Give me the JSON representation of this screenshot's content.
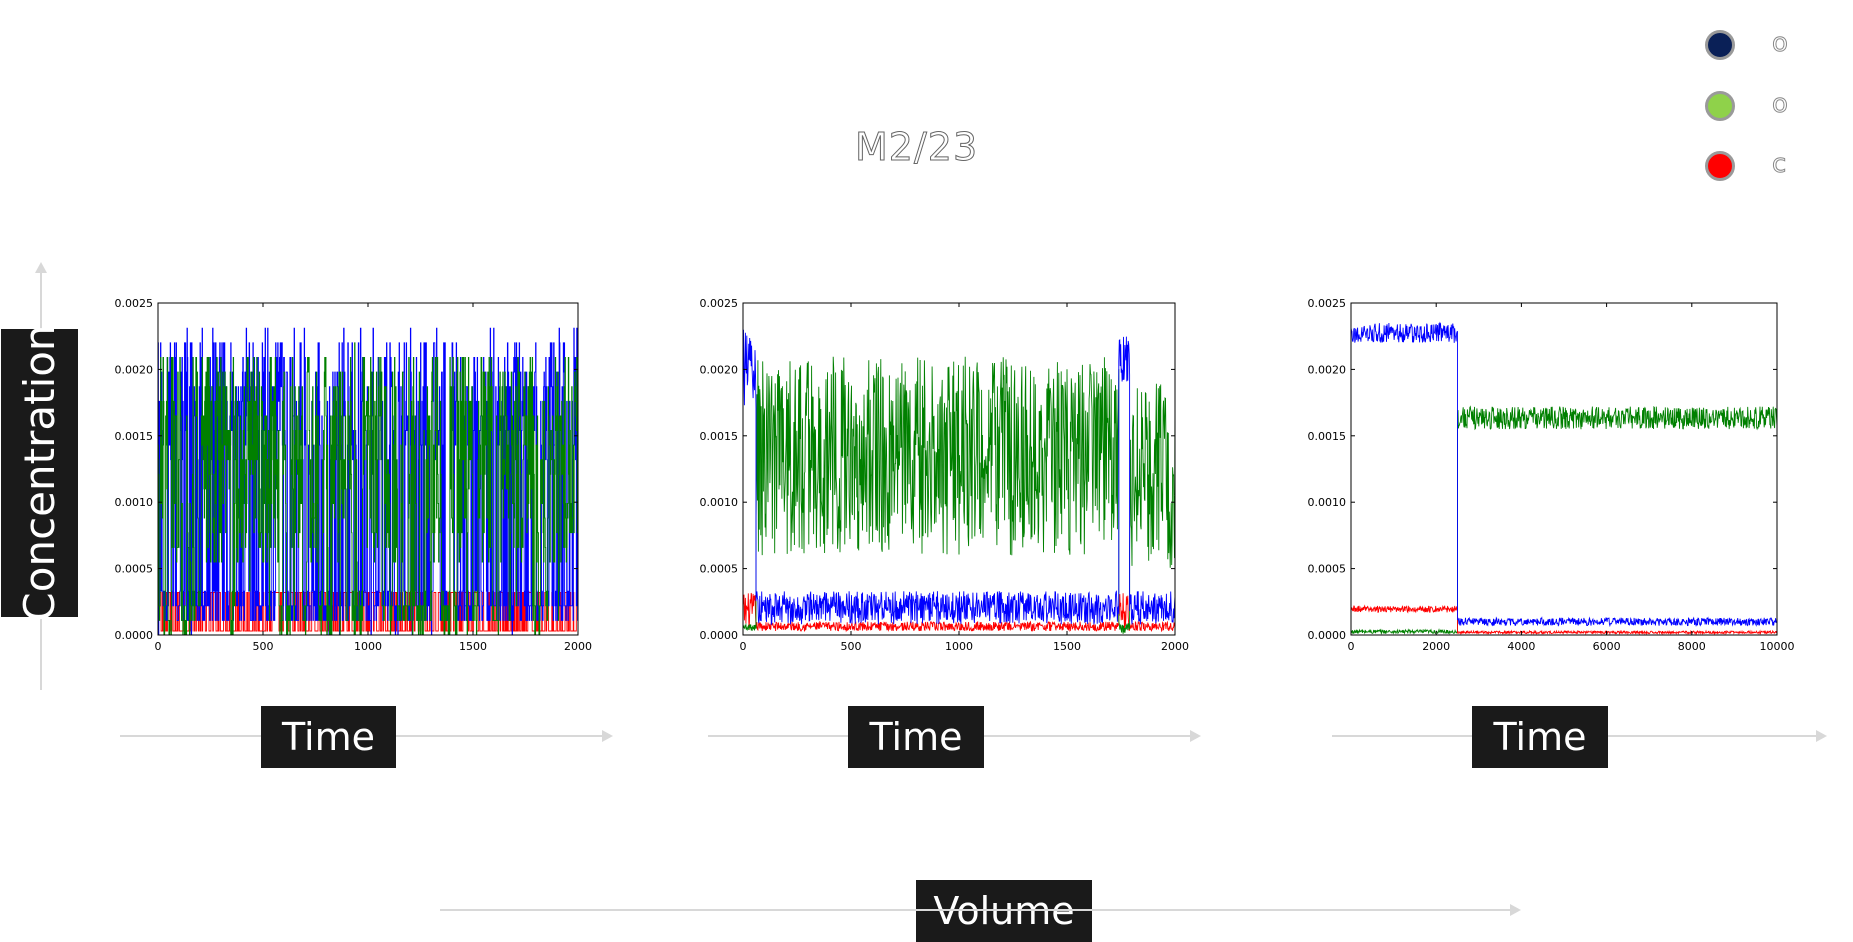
{
  "title": "M2/23",
  "legend": [
    {
      "label": "o",
      "color": "#0a2057"
    },
    {
      "label": "o",
      "color": "#8fd24a"
    },
    {
      "label": "c",
      "color": "#ff0000"
    }
  ],
  "labels": {
    "y_axis": "Concentration",
    "x_axis": "Time",
    "bottom_axis": "Volume"
  },
  "colors": {
    "blue": "#0000ff",
    "green": "#008000",
    "red": "#ff0000",
    "label_bg": "#1a1a1a"
  },
  "chart_data": [
    {
      "type": "line",
      "xlim": [
        0,
        2000
      ],
      "ylim": [
        0,
        0.0025
      ],
      "x_ticks": [
        "0",
        "500",
        "1000",
        "1500",
        "2000"
      ],
      "y_ticks": [
        "0.0000",
        "0.0005",
        "0.0010",
        "0.0015",
        "0.0020",
        "0.0025"
      ],
      "series": [
        {
          "color": "#ff0000",
          "pattern": "square_switch",
          "n": 2000,
          "lo": 3e-05,
          "hi": 0.00032,
          "hold": 3
        },
        {
          "color": "#0000ff",
          "pattern": "square_switch",
          "n": 2000,
          "lo": 5e-05,
          "hi": 0.0023,
          "hold": 2,
          "low_range": [
            5e-05,
            0.00032
          ],
          "high_range": [
            0.0013,
            0.0023
          ],
          "switch_prob": 0.35
        },
        {
          "color": "#008000",
          "pattern": "square_switch",
          "n": 2000,
          "lo": 0.0,
          "hi": 0.00215,
          "hold": 2,
          "low_range": [
            0.0,
            0.0003
          ],
          "high_range": [
            0.0005,
            0.00215
          ],
          "switch_prob": 0.25,
          "prefer_high": 0.75
        }
      ]
    },
    {
      "type": "line",
      "xlim": [
        0,
        2000
      ],
      "ylim": [
        0,
        0.0025
      ],
      "x_ticks": [
        "0",
        "500",
        "1000",
        "1500",
        "2000"
      ],
      "y_ticks": [
        "0.0000",
        "0.0005",
        "0.0010",
        "0.0015",
        "0.0020",
        "0.0025"
      ],
      "series": [
        {
          "color": "#ff0000",
          "segments": [
            [
              0,
              60,
              3e-05,
              0.00032
            ],
            [
              60,
              1740,
              3e-05,
              0.0001
            ],
            [
              1740,
              1790,
              3e-05,
              0.00032
            ],
            [
              1790,
              2000,
              3e-05,
              0.0001
            ]
          ]
        },
        {
          "color": "#008000",
          "segments": [
            [
              0,
              60,
              3e-05,
              8e-05
            ],
            [
              60,
              1740,
              0.0006,
              0.0021
            ],
            [
              1740,
              1790,
              0.0,
              0.0001
            ],
            [
              1790,
              2000,
              0.0005,
              0.0019
            ]
          ]
        },
        {
          "color": "#0000ff",
          "segments": [
            [
              0,
              60,
              0.0017,
              0.0023
            ],
            [
              60,
              1740,
              8e-05,
              0.00033
            ],
            [
              1740,
              1790,
              0.0019,
              0.00225
            ],
            [
              1790,
              2000,
              8e-05,
              0.00033
            ]
          ]
        }
      ]
    },
    {
      "type": "line",
      "xlim": [
        0,
        10000
      ],
      "ylim": [
        0,
        0.0025
      ],
      "x_ticks": [
        "0",
        "2000",
        "4000",
        "6000",
        "8000",
        "10000"
      ],
      "y_ticks": [
        "0.0000",
        "0.0005",
        "0.0010",
        "0.0015",
        "0.0020",
        "0.0025"
      ],
      "series": [
        {
          "color": "#008000",
          "segments": [
            [
              0,
              2500,
              1e-05,
              4e-05
            ],
            [
              2500,
              10000,
              0.00155,
              0.00172
            ]
          ]
        },
        {
          "color": "#ff0000",
          "segments": [
            [
              0,
              2500,
              0.00017,
              0.00022
            ],
            [
              2500,
              10000,
              1e-05,
              3e-05
            ]
          ]
        },
        {
          "color": "#0000ff",
          "segments": [
            [
              0,
              2500,
              0.0022,
              0.00235
            ],
            [
              2500,
              10000,
              7e-05,
              0.00013
            ]
          ]
        }
      ]
    }
  ]
}
